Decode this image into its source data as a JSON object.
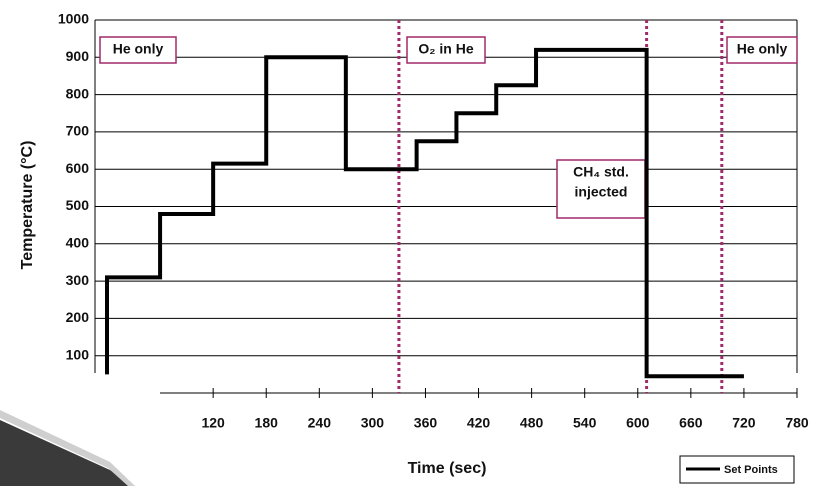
{
  "chart_data": {
    "type": "line",
    "y_label": "Temperature (°C)",
    "x_label": "Time (sec)",
    "x": [
      0,
      0,
      60,
      60,
      120,
      120,
      180,
      180,
      270,
      270,
      350,
      350,
      395,
      395,
      440,
      440,
      485,
      485,
      610,
      610,
      720
    ],
    "series": [
      {
        "name": "Set Points",
        "color": "#000000",
        "values": [
          50,
          310,
          310,
          480,
          480,
          615,
          615,
          900,
          900,
          600,
          600,
          675,
          675,
          750,
          750,
          825,
          825,
          920,
          920,
          45,
          45
        ]
      }
    ],
    "xlim": [
      0,
      780
    ],
    "xticks": [
      120,
      180,
      240,
      300,
      360,
      420,
      480,
      540,
      600,
      660,
      720,
      780
    ],
    "ylim": [
      0,
      1000
    ],
    "yticks": [
      100,
      200,
      300,
      400,
      500,
      600,
      700,
      800,
      900,
      1000
    ],
    "grid": true,
    "markers": [
      {
        "x": 330,
        "color": "#a02a6a"
      },
      {
        "x": 610,
        "color": "#a02a6a"
      },
      {
        "x": 695,
        "color": "#a02a6a"
      }
    ],
    "annotations": [
      {
        "lines": [
          "He only"
        ]
      },
      {
        "lines": [
          "O₂ in He"
        ]
      },
      {
        "lines": [
          "CH₄ std.",
          "injected"
        ]
      },
      {
        "lines": [
          "He only"
        ]
      }
    ]
  }
}
